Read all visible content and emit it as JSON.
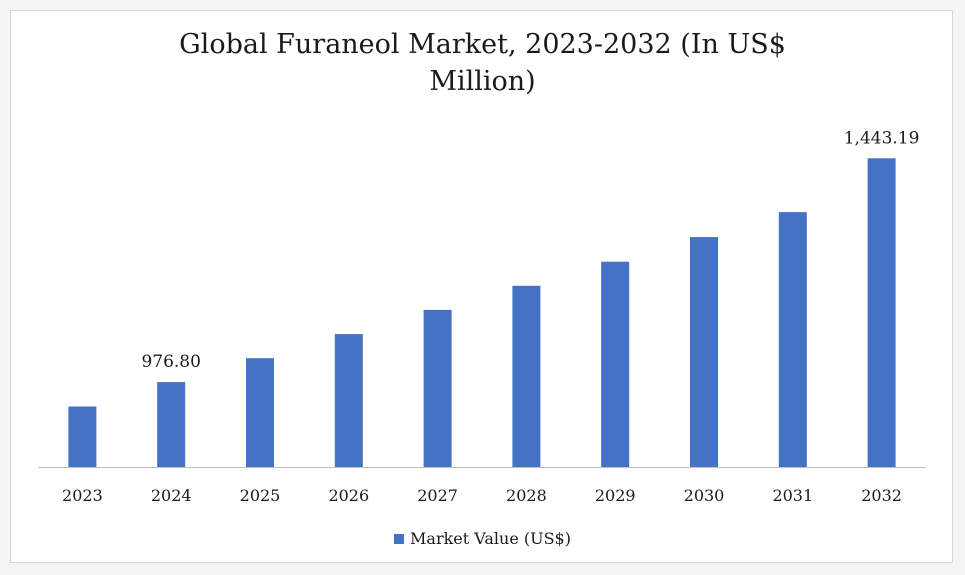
{
  "chart_data": {
    "type": "bar",
    "title_lines": [
      "Global Furaneol Market, 2023-2032 (In US$",
      "Million)"
    ],
    "categories": [
      "2023",
      "2024",
      "2025",
      "2026",
      "2027",
      "2028",
      "2029",
      "2030",
      "2031",
      "2032"
    ],
    "series": [
      {
        "name": "Market Value (US$)",
        "color": "#4472c4",
        "values": [
          926.1,
          976.8,
          1026.6,
          1076.9,
          1127.2,
          1177.5,
          1227.8,
          1278.9,
          1331.1,
          1443.19
        ]
      }
    ],
    "data_labels": [
      {
        "index": 1,
        "text": "976.80"
      },
      {
        "index": 9,
        "text": "1,443.19"
      }
    ],
    "ylim": [
      800,
      1500
    ],
    "grid": false,
    "legend": "bottom"
  }
}
